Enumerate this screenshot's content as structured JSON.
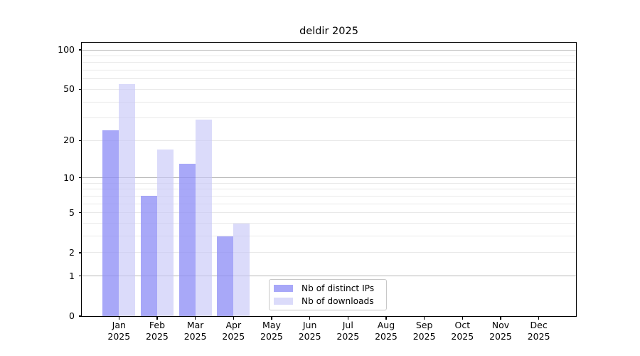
{
  "chart_data": {
    "type": "bar",
    "title": "deldir 2025",
    "x_axis": {
      "months": [
        "Jan",
        "Feb",
        "Mar",
        "Apr",
        "May",
        "Jun",
        "Jul",
        "Aug",
        "Sep",
        "Oct",
        "Nov",
        "Dec"
      ],
      "year": "2025"
    },
    "y_axis": {
      "scale": "log10(1+x)",
      "ymin": 0,
      "ymax": 100,
      "labeled_ticks": [
        0,
        1,
        2,
        5,
        10,
        20,
        50,
        100
      ],
      "major_gridlines": [
        1,
        10,
        100
      ],
      "minor_gridlines": [
        2,
        3,
        4,
        5,
        6,
        7,
        8,
        9,
        20,
        30,
        40,
        50,
        60,
        70,
        80,
        90
      ]
    },
    "series": [
      {
        "name": "Nb of distinct IPs",
        "color": "#a8a8f8",
        "fill": "rgba(143,143,246,0.78)",
        "values": [
          24,
          7,
          13,
          3,
          0,
          0,
          0,
          0,
          0,
          0,
          0,
          0
        ]
      },
      {
        "name": "Nb of downloads",
        "color": "#dcdcfa",
        "fill": "rgba(200,200,248,0.65)",
        "values": [
          55,
          17,
          29,
          4,
          0,
          0,
          0,
          0,
          0,
          0,
          0,
          0
        ]
      }
    ],
    "legend_position": "bottom-center",
    "grid": true
  },
  "style": {
    "major_grid_color": "#b8b8b8",
    "minor_grid_color": "#e9e9e9",
    "axis_color": "#000000",
    "background": "#ffffff",
    "legend_border_color": "#c8c8c8",
    "text_color": "#000000"
  }
}
